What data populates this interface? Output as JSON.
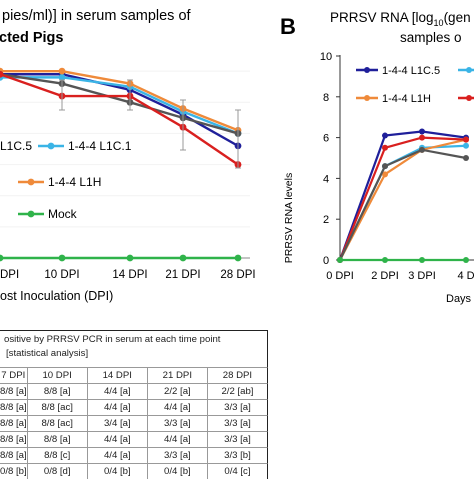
{
  "left_panel": {
    "title_line1": "pies/ml)] in serum samples of",
    "title_line2": "cted Pigs",
    "xlabel": "ost Inoculation (DPI)",
    "legend": [
      "L1C.5",
      "1-4-4 L1C.1",
      "1-4-4 L1H",
      "Mock"
    ]
  },
  "right_panel": {
    "letter": "B",
    "title_line1": "PRRSV RNA [log",
    "title_sub": "10",
    "title_rest": "(gen",
    "title_line2": "samples o",
    "ylabel": "PRRSV RNA levels",
    "xlabel": "Days",
    "legend": [
      "1-4-4 L1C.5",
      "1-4-4 L1H"
    ]
  },
  "table": {
    "title_line1": "ositive by PRRSV PCR in serum at each time point",
    "title_line2": "[statistical analysis]",
    "headers": [
      "7 DPI",
      "10 DPI",
      "14 DPI",
      "21 DPI",
      "28 DPI"
    ],
    "rows": [
      [
        "8/8 [a]",
        "8/8 [a]",
        "4/4 [a]",
        "2/2 [a]",
        "2/2 [ab]"
      ],
      [
        "8/8 [a]",
        "8/8 [ac]",
        "4/4 [a]",
        "4/4 [a]",
        "3/3 [a]"
      ],
      [
        "8/8 [a]",
        "8/8 [ac]",
        "3/4 [a]",
        "3/3 [a]",
        "3/3 [a]"
      ],
      [
        "8/8 [a]",
        "8/8 [a]",
        "4/4 [a]",
        "4/4 [a]",
        "3/3 [a]"
      ],
      [
        "8/8 [a]",
        "8/8 [c]",
        "4/4 [a]",
        "3/3 [a]",
        "3/3 [b]"
      ],
      [
        "0/8 [b]",
        "0/8 [d]",
        "0/4 [b]",
        "0/4 [b]",
        "0/4 [c]"
      ]
    ]
  },
  "chart_data": [
    {
      "type": "line",
      "title": "pies/ml)] in serum samples of cted Pigs",
      "xlabel": "ost Inoculation (DPI)",
      "categories": [
        "DPI",
        "10 DPI",
        "14 DPI",
        "21 DPI",
        "28 DPI"
      ],
      "series": [
        {
          "name": "L1C.5",
          "color": "#1f1f9a",
          "values": [
            5.9,
            5.9,
            5.4,
            4.6,
            3.6
          ]
        },
        {
          "name": "1-4-4 L1C.1",
          "color": "#3ab4e6",
          "values": [
            5.8,
            5.8,
            5.5,
            4.7,
            4.0
          ]
        },
        {
          "name": "1-4-4 L1H",
          "color": "#ef8a3a",
          "values": [
            6.0,
            6.0,
            5.6,
            4.8,
            4.1
          ]
        },
        {
          "name": "",
          "color": "#555555",
          "values": [
            5.9,
            5.6,
            5.0,
            4.5,
            4.0
          ]
        },
        {
          "name": "",
          "color": "#d9201f",
          "values": [
            5.9,
            5.2,
            5.2,
            4.2,
            3.0
          ]
        },
        {
          "name": "Mock",
          "color": "#2fb34a",
          "values": [
            0,
            0,
            0,
            0,
            0
          ]
        }
      ],
      "ylim": [
        0,
        7
      ]
    },
    {
      "type": "line",
      "title": "PRRSV RNA [log10(gen samples o",
      "ylabel": "PRRSV RNA levels",
      "xlabel": "Days",
      "categories": [
        "0 DPI",
        "2 DPI",
        "3 DPI",
        "4 D"
      ],
      "y_ticks": [
        "0",
        "2",
        "4",
        "6",
        "8",
        "10"
      ],
      "series": [
        {
          "name": "1-4-4 L1C.5",
          "color": "#1f1f9a",
          "values": [
            0,
            6.1,
            6.3,
            6.0
          ]
        },
        {
          "name": "",
          "color": "#3ab4e6",
          "values": [
            0,
            4.6,
            5.5,
            5.6
          ]
        },
        {
          "name": "1-4-4 L1H",
          "color": "#ef8a3a",
          "values": [
            0,
            4.2,
            5.4,
            5.9
          ]
        },
        {
          "name": "",
          "color": "#d9201f",
          "values": [
            0,
            5.5,
            6.0,
            5.9
          ]
        },
        {
          "name": "",
          "color": "#555555",
          "values": [
            0,
            4.6,
            5.4,
            5.0
          ]
        },
        {
          "name": "",
          "color": "#2fb34a",
          "values": [
            0,
            0,
            0,
            0
          ]
        }
      ],
      "ylim": [
        0,
        10
      ]
    }
  ]
}
